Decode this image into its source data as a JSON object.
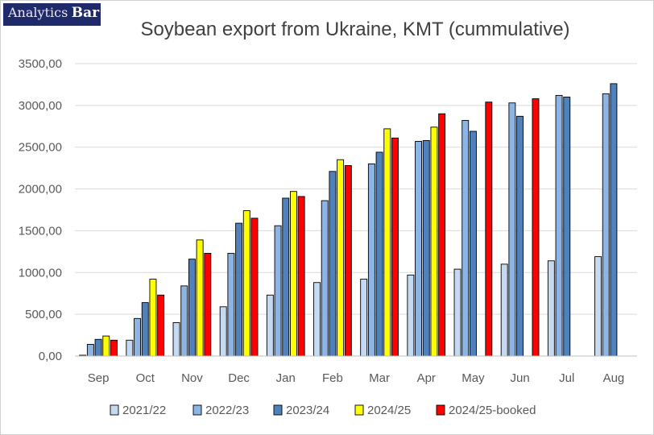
{
  "logo": {
    "part1": "Analytics",
    "part2": "Bar"
  },
  "chart_data": {
    "type": "bar",
    "title": "Soybean export from Ukraine, KMT (cummulative)",
    "categories": [
      "Sep",
      "Oct",
      "Nov",
      "Dec",
      "Jan",
      "Feb",
      "Mar",
      "Apr",
      "May",
      "Jun",
      "Jul",
      "Aug"
    ],
    "ylim": [
      0,
      3500
    ],
    "yticks": [
      "0,00",
      "500,00",
      "1000,00",
      "1500,00",
      "2000,00",
      "2500,00",
      "3000,00",
      "3500,00"
    ],
    "grid": true,
    "legend_position": "bottom",
    "series": [
      {
        "name": "2021/22",
        "color": "#c5d9f1",
        "values": [
          10,
          190,
          400,
          590,
          730,
          880,
          920,
          970,
          1040,
          1100,
          1140,
          1190
        ]
      },
      {
        "name": "2022/23",
        "color": "#8db4e2",
        "values": [
          140,
          450,
          840,
          1230,
          1560,
          1860,
          2300,
          2570,
          2820,
          3030,
          3120,
          3140
        ]
      },
      {
        "name": "2023/24",
        "color": "#4f81bd",
        "values": [
          200,
          640,
          1160,
          1590,
          1890,
          2210,
          2440,
          2580,
          2690,
          2870,
          3100,
          3260
        ]
      },
      {
        "name": "2024/25",
        "color": "#ffff00",
        "values": [
          240,
          920,
          1390,
          1740,
          1970,
          2350,
          2720,
          2740,
          null,
          null,
          null,
          null
        ]
      },
      {
        "name": "2024/25-booked",
        "color": "#ff0000",
        "values": [
          190,
          730,
          1230,
          1650,
          1910,
          2280,
          2610,
          2900,
          3040,
          3080,
          null,
          null
        ]
      }
    ]
  }
}
